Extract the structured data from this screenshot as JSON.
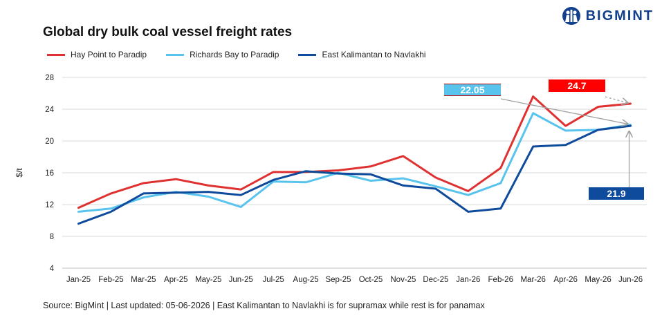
{
  "brand": {
    "name": "BIGMINT",
    "logo_icon": "bigmint-logo-icon",
    "color": "#12408c"
  },
  "chart_data": {
    "type": "line",
    "title": "Global dry bulk coal vessel freight rates",
    "xlabel": "",
    "ylabel": "$/t",
    "categories": [
      "Jan-25",
      "Feb-25",
      "Mar-25",
      "Apr-25",
      "May-25",
      "Jun-25",
      "Jul-25",
      "Aug-25",
      "Sep-25",
      "Oct-25",
      "Nov-25",
      "Dec-25",
      "Jan-26",
      "Feb-26",
      "Mar-26",
      "Apr-26",
      "May-26",
      "Jun-26"
    ],
    "ylim": [
      4,
      28
    ],
    "yticks": [
      4,
      8,
      12,
      16,
      20,
      24,
      28
    ],
    "grid": true,
    "legend_position": "top-left",
    "series": [
      {
        "name": "Hay Point to Paradip",
        "color": "#e03131",
        "values": [
          11.6,
          13.4,
          14.7,
          15.2,
          14.4,
          13.9,
          16.1,
          16.1,
          16.3,
          16.8,
          18.1,
          15.4,
          13.7,
          16.6,
          25.6,
          21.9,
          24.3,
          24.7
        ]
      },
      {
        "name": "Richards Bay to Paradip",
        "color": "#58c3ec",
        "values": [
          11.1,
          11.5,
          12.9,
          13.6,
          13.0,
          11.7,
          14.9,
          14.8,
          16.0,
          15.0,
          15.3,
          14.3,
          13.2,
          14.7,
          23.5,
          21.3,
          21.4,
          22.05
        ]
      },
      {
        "name": "East Kalimantan to Navlakhi",
        "color": "#0f4b9c",
        "values": [
          9.6,
          11.1,
          13.4,
          13.5,
          13.6,
          13.2,
          15.1,
          16.2,
          15.9,
          15.8,
          14.4,
          14.0,
          11.1,
          11.5,
          19.3,
          19.5,
          21.4,
          21.9
        ]
      }
    ],
    "annotations": [
      {
        "label": "22.05",
        "series": 1,
        "box_color": "#58c3ec",
        "text_color": "#ffffff",
        "border_color": "#c00000"
      },
      {
        "label": "24.7",
        "series": 0,
        "box_color": "#ff0000",
        "text_color": "#ffffff"
      },
      {
        "label": "21.9",
        "series": 2,
        "box_color": "#0f4b9c",
        "text_color": "#ffffff"
      }
    ]
  },
  "source_note": "Source: BigMint | Last updated: 05-06-2026 | East Kalimantan to Navlakhi is for supramax while rest is for panamax"
}
